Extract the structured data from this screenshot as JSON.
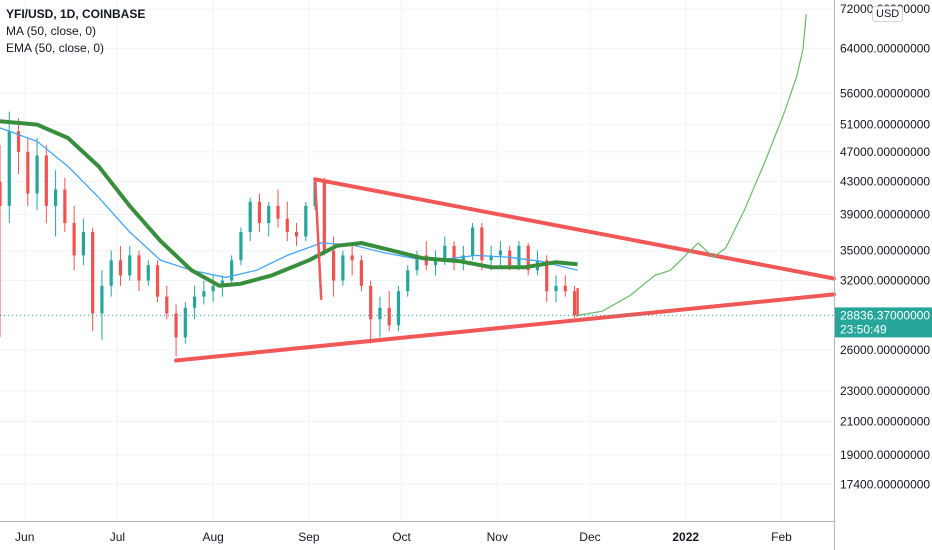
{
  "legend": {
    "symbol_line": "YFI/USD, 1D, COINBASE",
    "ma_line": "MA (50, close, 0)",
    "ema_line": "EMA (50, close, 0)"
  },
  "currency_badge": "USD",
  "last_price": {
    "value": "28836.37000000",
    "countdown": "23:50:49"
  },
  "colors": {
    "up": "#26a69a",
    "down": "#ef5350",
    "trendline": "#f05757",
    "ema": "#388e3c",
    "ma": "#42a5f5",
    "projection": "#66bb6a",
    "price_tag": "#26a69a",
    "grid": "#f0f3fa",
    "text": "#131722"
  },
  "chart_data": {
    "type": "candlestick",
    "title": "YFI/USD, 1D, COINBASE",
    "x_axis": {
      "tick_labels": [
        {
          "label": "Jun",
          "date": "2021-06-01"
        },
        {
          "label": "Jul",
          "date": "2021-07-01"
        },
        {
          "label": "Aug",
          "date": "2021-08-01"
        },
        {
          "label": "Sep",
          "date": "2021-09-01"
        },
        {
          "label": "Oct",
          "date": "2021-10-01"
        },
        {
          "label": "Nov",
          "date": "2021-11-01"
        },
        {
          "label": "Dec",
          "date": "2021-12-01"
        },
        {
          "label": "2022",
          "date": "2022-01-01"
        },
        {
          "label": "Feb",
          "date": "2022-02-01"
        }
      ],
      "range": [
        "2021-05-24",
        "2022-02-18"
      ]
    },
    "y_axis": {
      "scale": "log",
      "range": [
        15600,
        74000
      ],
      "tick_labels": [
        "72000.00000000",
        "64000.00000000",
        "56000.00000000",
        "51000.00000000",
        "47000.00000000",
        "43000.00000000",
        "39000.00000000",
        "35000.00000000",
        "32000.00000000",
        "26000.00000000",
        "23000.00000000",
        "21000.00000000",
        "19000.00000000",
        "17400.00000000"
      ],
      "tick_values": [
        72000,
        64000,
        56000,
        51000,
        47000,
        43000,
        39000,
        35000,
        32000,
        26000,
        23000,
        21000,
        19000,
        17400
      ]
    },
    "candles": [
      {
        "date": "2021-05-24",
        "o": 43000,
        "h": 48000,
        "l": 27000,
        "c": 40000
      },
      {
        "date": "2021-05-27",
        "o": 40000,
        "h": 53000,
        "l": 38000,
        "c": 50000
      },
      {
        "date": "2021-05-30",
        "o": 50000,
        "h": 52000,
        "l": 44000,
        "c": 47000
      },
      {
        "date": "2021-06-02",
        "o": 47000,
        "h": 49000,
        "l": 40000,
        "c": 41500
      },
      {
        "date": "2021-06-05",
        "o": 41500,
        "h": 49000,
        "l": 39500,
        "c": 46500
      },
      {
        "date": "2021-06-08",
        "o": 46500,
        "h": 48000,
        "l": 38000,
        "c": 40000
      },
      {
        "date": "2021-06-11",
        "o": 40000,
        "h": 44500,
        "l": 36500,
        "c": 42000
      },
      {
        "date": "2021-06-14",
        "o": 42000,
        "h": 43500,
        "l": 37000,
        "c": 38000
      },
      {
        "date": "2021-06-17",
        "o": 38000,
        "h": 40000,
        "l": 33000,
        "c": 34500
      },
      {
        "date": "2021-06-20",
        "o": 34500,
        "h": 38500,
        "l": 33500,
        "c": 37000
      },
      {
        "date": "2021-06-23",
        "o": 37000,
        "h": 37500,
        "l": 27500,
        "c": 29000
      },
      {
        "date": "2021-06-26",
        "o": 29000,
        "h": 33000,
        "l": 26800,
        "c": 31500
      },
      {
        "date": "2021-06-29",
        "o": 31500,
        "h": 35000,
        "l": 30500,
        "c": 34000
      },
      {
        "date": "2021-07-02",
        "o": 34000,
        "h": 35500,
        "l": 31500,
        "c": 32500
      },
      {
        "date": "2021-07-05",
        "o": 32500,
        "h": 35500,
        "l": 32000,
        "c": 34500
      },
      {
        "date": "2021-07-08",
        "o": 34500,
        "h": 35000,
        "l": 31000,
        "c": 32000
      },
      {
        "date": "2021-07-11",
        "o": 32000,
        "h": 34000,
        "l": 31500,
        "c": 33500
      },
      {
        "date": "2021-07-14",
        "o": 33500,
        "h": 34000,
        "l": 30000,
        "c": 30500
      },
      {
        "date": "2021-07-17",
        "o": 30500,
        "h": 31500,
        "l": 28500,
        "c": 29000
      },
      {
        "date": "2021-07-20",
        "o": 29000,
        "h": 29800,
        "l": 25500,
        "c": 27000
      },
      {
        "date": "2021-07-23",
        "o": 27000,
        "h": 30000,
        "l": 26500,
        "c": 29500
      },
      {
        "date": "2021-07-26",
        "o": 29500,
        "h": 31500,
        "l": 28500,
        "c": 30500
      },
      {
        "date": "2021-07-29",
        "o": 30500,
        "h": 32000,
        "l": 29800,
        "c": 31000
      },
      {
        "date": "2021-08-01",
        "o": 31000,
        "h": 32500,
        "l": 30000,
        "c": 31500
      },
      {
        "date": "2021-08-04",
        "o": 31500,
        "h": 32500,
        "l": 30500,
        "c": 32000
      },
      {
        "date": "2021-08-07",
        "o": 32000,
        "h": 34500,
        "l": 31500,
        "c": 34000
      },
      {
        "date": "2021-08-10",
        "o": 34000,
        "h": 37500,
        "l": 33500,
        "c": 37000
      },
      {
        "date": "2021-08-13",
        "o": 37000,
        "h": 41000,
        "l": 36000,
        "c": 40500
      },
      {
        "date": "2021-08-16",
        "o": 40500,
        "h": 41500,
        "l": 37000,
        "c": 38000
      },
      {
        "date": "2021-08-19",
        "o": 38000,
        "h": 40500,
        "l": 36500,
        "c": 40000
      },
      {
        "date": "2021-08-22",
        "o": 40000,
        "h": 42000,
        "l": 37500,
        "c": 38500
      },
      {
        "date": "2021-08-25",
        "o": 38500,
        "h": 40500,
        "l": 36000,
        "c": 37000
      },
      {
        "date": "2021-08-28",
        "o": 37000,
        "h": 38000,
        "l": 35500,
        "c": 36500
      },
      {
        "date": "2021-08-31",
        "o": 36500,
        "h": 40500,
        "l": 36000,
        "c": 40000
      },
      {
        "date": "2021-09-03",
        "o": 40000,
        "h": 43500,
        "l": 39500,
        "c": 43000
      },
      {
        "date": "2021-09-06",
        "o": 43000,
        "h": 43500,
        "l": 34500,
        "c": 35000
      },
      {
        "date": "2021-09-09",
        "o": 35000,
        "h": 36500,
        "l": 30500,
        "c": 32000
      },
      {
        "date": "2021-09-12",
        "o": 32000,
        "h": 35000,
        "l": 31500,
        "c": 34500
      },
      {
        "date": "2021-09-15",
        "o": 34500,
        "h": 35500,
        "l": 32500,
        "c": 34000
      },
      {
        "date": "2021-09-18",
        "o": 34000,
        "h": 34500,
        "l": 31000,
        "c": 31500
      },
      {
        "date": "2021-09-21",
        "o": 31500,
        "h": 32000,
        "l": 26500,
        "c": 28500
      },
      {
        "date": "2021-09-24",
        "o": 28500,
        "h": 30500,
        "l": 27000,
        "c": 29500
      },
      {
        "date": "2021-09-27",
        "o": 29500,
        "h": 31000,
        "l": 27500,
        "c": 28000
      },
      {
        "date": "2021-09-30",
        "o": 28000,
        "h": 31500,
        "l": 27500,
        "c": 31000
      },
      {
        "date": "2021-10-03",
        "o": 31000,
        "h": 33500,
        "l": 30500,
        "c": 33000
      },
      {
        "date": "2021-10-06",
        "o": 33000,
        "h": 35000,
        "l": 32500,
        "c": 34500
      },
      {
        "date": "2021-10-09",
        "o": 34500,
        "h": 36000,
        "l": 33000,
        "c": 33500
      },
      {
        "date": "2021-10-12",
        "o": 33500,
        "h": 35000,
        "l": 32500,
        "c": 34000
      },
      {
        "date": "2021-10-15",
        "o": 34000,
        "h": 36500,
        "l": 33500,
        "c": 35500
      },
      {
        "date": "2021-10-18",
        "o": 35500,
        "h": 36000,
        "l": 33000,
        "c": 34000
      },
      {
        "date": "2021-10-21",
        "o": 34000,
        "h": 35500,
        "l": 33000,
        "c": 34500
      },
      {
        "date": "2021-10-24",
        "o": 34500,
        "h": 38000,
        "l": 34000,
        "c": 37500
      },
      {
        "date": "2021-10-27",
        "o": 37500,
        "h": 38000,
        "l": 33000,
        "c": 34000
      },
      {
        "date": "2021-10-30",
        "o": 34000,
        "h": 35500,
        "l": 33000,
        "c": 34500
      },
      {
        "date": "2021-11-02",
        "o": 34500,
        "h": 36000,
        "l": 33500,
        "c": 35000
      },
      {
        "date": "2021-11-05",
        "o": 35000,
        "h": 35500,
        "l": 33000,
        "c": 33500
      },
      {
        "date": "2021-11-08",
        "o": 33500,
        "h": 36000,
        "l": 33000,
        "c": 35500
      },
      {
        "date": "2021-11-11",
        "o": 35500,
        "h": 35800,
        "l": 32500,
        "c": 33000
      },
      {
        "date": "2021-11-14",
        "o": 33000,
        "h": 35000,
        "l": 32500,
        "c": 34000
      },
      {
        "date": "2021-11-17",
        "o": 34000,
        "h": 34500,
        "l": 30000,
        "c": 31000
      },
      {
        "date": "2021-11-20",
        "o": 31000,
        "h": 32500,
        "l": 30000,
        "c": 31500
      },
      {
        "date": "2021-11-23",
        "o": 31500,
        "h": 32500,
        "l": 30500,
        "c": 31000
      },
      {
        "date": "2021-11-26",
        "o": 31000,
        "h": 31500,
        "l": 28600,
        "c": 28836
      }
    ],
    "ema_50": [
      {
        "date": "2021-05-24",
        "v": 51500
      },
      {
        "date": "2021-06-05",
        "v": 51000
      },
      {
        "date": "2021-06-15",
        "v": 49000
      },
      {
        "date": "2021-06-25",
        "v": 45000
      },
      {
        "date": "2021-07-05",
        "v": 40000
      },
      {
        "date": "2021-07-15",
        "v": 36000
      },
      {
        "date": "2021-07-25",
        "v": 33000
      },
      {
        "date": "2021-08-03",
        "v": 31500
      },
      {
        "date": "2021-08-10",
        "v": 31700
      },
      {
        "date": "2021-08-20",
        "v": 32500
      },
      {
        "date": "2021-09-01",
        "v": 34000
      },
      {
        "date": "2021-09-10",
        "v": 35500
      },
      {
        "date": "2021-09-18",
        "v": 35800
      },
      {
        "date": "2021-09-28",
        "v": 35000
      },
      {
        "date": "2021-10-08",
        "v": 34200
      },
      {
        "date": "2021-10-20",
        "v": 33900
      },
      {
        "date": "2021-10-30",
        "v": 33300
      },
      {
        "date": "2021-11-10",
        "v": 33300
      },
      {
        "date": "2021-11-20",
        "v": 33800
      },
      {
        "date": "2021-11-27",
        "v": 33600
      }
    ],
    "ma_50": [
      {
        "date": "2021-05-24",
        "v": 50500
      },
      {
        "date": "2021-06-05",
        "v": 48500
      },
      {
        "date": "2021-06-15",
        "v": 45000
      },
      {
        "date": "2021-06-25",
        "v": 41000
      },
      {
        "date": "2021-07-05",
        "v": 37000
      },
      {
        "date": "2021-07-15",
        "v": 34000
      },
      {
        "date": "2021-07-25",
        "v": 33000
      },
      {
        "date": "2021-08-05",
        "v": 32300
      },
      {
        "date": "2021-08-15",
        "v": 33000
      },
      {
        "date": "2021-08-25",
        "v": 34500
      },
      {
        "date": "2021-09-05",
        "v": 35800
      },
      {
        "date": "2021-09-15",
        "v": 35600
      },
      {
        "date": "2021-09-25",
        "v": 34800
      },
      {
        "date": "2021-10-05",
        "v": 34200
      },
      {
        "date": "2021-10-15",
        "v": 34100
      },
      {
        "date": "2021-10-25",
        "v": 34500
      },
      {
        "date": "2021-11-05",
        "v": 34300
      },
      {
        "date": "2021-11-15",
        "v": 33900
      },
      {
        "date": "2021-11-27",
        "v": 33000
      }
    ],
    "trendlines": [
      {
        "name": "upper",
        "points": [
          {
            "date": "2021-09-03",
            "v": 43300
          },
          {
            "date": "2022-02-18",
            "v": 32200
          }
        ]
      },
      {
        "name": "lower",
        "points": [
          {
            "date": "2021-07-20",
            "v": 25200
          },
          {
            "date": "2022-02-18",
            "v": 30700
          }
        ]
      },
      {
        "name": "connector",
        "points": [
          {
            "date": "2021-09-03",
            "v": 43300
          },
          {
            "date": "2021-09-05",
            "v": 30300
          }
        ]
      },
      {
        "name": "last-drop",
        "points": [
          {
            "date": "2021-11-27",
            "v": 31200
          },
          {
            "date": "2021-11-27",
            "v": 28836
          }
        ]
      }
    ],
    "projection": [
      {
        "date": "2021-11-27",
        "v": 28836
      },
      {
        "date": "2021-12-05",
        "v": 29200
      },
      {
        "date": "2021-12-14",
        "v": 30600
      },
      {
        "date": "2021-12-22",
        "v": 32500
      },
      {
        "date": "2021-12-27",
        "v": 33000
      },
      {
        "date": "2021-12-31",
        "v": 34200
      },
      {
        "date": "2022-01-05",
        "v": 35800
      },
      {
        "date": "2022-01-10",
        "v": 34300
      },
      {
        "date": "2022-01-14",
        "v": 35300
      },
      {
        "date": "2022-01-20",
        "v": 39500
      },
      {
        "date": "2022-01-27",
        "v": 46000
      },
      {
        "date": "2022-02-02",
        "v": 53000
      },
      {
        "date": "2022-02-06",
        "v": 59000
      },
      {
        "date": "2022-02-08",
        "v": 64000
      },
      {
        "date": "2022-02-09",
        "v": 71000
      }
    ],
    "last_price": 28836.37
  }
}
